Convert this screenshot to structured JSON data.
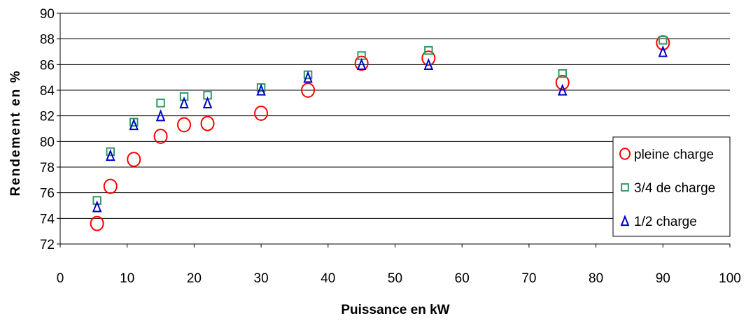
{
  "chart_data": {
    "type": "scatter",
    "xlabel": "Puissance en kW",
    "ylabel": "Rendement en %",
    "xlim": [
      0,
      100
    ],
    "ylim": [
      72,
      90
    ],
    "xticks": [
      0,
      10,
      20,
      30,
      40,
      50,
      60,
      70,
      80,
      90,
      100
    ],
    "yticks": [
      72,
      74,
      76,
      78,
      80,
      82,
      84,
      86,
      88,
      90
    ],
    "grid": "horizontal",
    "legend_position": "right",
    "series": [
      {
        "name": "pleine charge",
        "marker": "circle",
        "color": "#ff0000",
        "points": [
          [
            5.5,
            73.6
          ],
          [
            7.5,
            76.5
          ],
          [
            11,
            78.6
          ],
          [
            15,
            80.4
          ],
          [
            18.5,
            81.3
          ],
          [
            22,
            81.4
          ],
          [
            30,
            82.2
          ],
          [
            37,
            84.0
          ],
          [
            45,
            86.1
          ],
          [
            55,
            86.5
          ],
          [
            75,
            84.6
          ],
          [
            90,
            87.7
          ]
        ]
      },
      {
        "name": "3/4 de charge",
        "marker": "square",
        "color": "#339966",
        "points": [
          [
            5.5,
            75.4
          ],
          [
            7.5,
            79.2
          ],
          [
            11,
            81.5
          ],
          [
            15,
            83.0
          ],
          [
            18.5,
            83.5
          ],
          [
            22,
            83.6
          ],
          [
            30,
            84.2
          ],
          [
            37,
            85.2
          ],
          [
            45,
            86.7
          ],
          [
            55,
            87.1
          ],
          [
            75,
            85.3
          ],
          [
            90,
            87.9
          ]
        ]
      },
      {
        "name": "1/2 charge",
        "marker": "triangle",
        "color": "#0000cc",
        "points": [
          [
            5.5,
            74.9
          ],
          [
            7.5,
            78.9
          ],
          [
            11,
            81.3
          ],
          [
            15,
            82.0
          ],
          [
            18.5,
            83.0
          ],
          [
            22,
            83.0
          ],
          [
            30,
            84.0
          ],
          [
            37,
            85.0
          ],
          [
            45,
            86.0
          ],
          [
            55,
            86.0
          ],
          [
            75,
            84.0
          ],
          [
            90,
            87.0
          ]
        ]
      }
    ]
  }
}
